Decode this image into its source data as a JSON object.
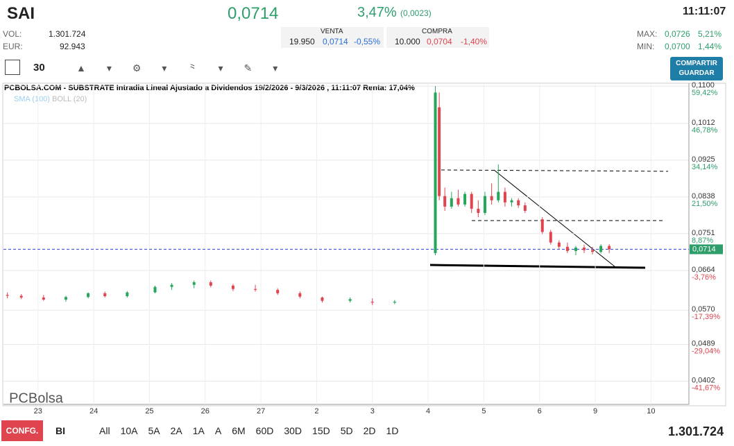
{
  "header": {
    "symbol": "SAI",
    "price": "0,0714",
    "change_pct": "3,47%",
    "change_abs": "(0,0023)",
    "time": "11:11:07",
    "vol_label": "VOL:",
    "vol": "1.301.724",
    "eur_label": "EUR:",
    "eur": "92.943",
    "venta_label": "VENTA",
    "venta_qty": "19.950",
    "venta_price": "0,0714",
    "venta_pct": "-0,55%",
    "compra_label": "COMPRA",
    "compra_qty": "10.000",
    "compra_price": "0,0704",
    "compra_pct": "-1,40%",
    "max_label": "MAX:",
    "max": "0,0726",
    "max_pct": "5,21%",
    "min_label": "MIN:",
    "min": "0,0700",
    "min_pct": "1,44%"
  },
  "toolbar": {
    "interval": "30",
    "share": "COMPARTIR GUARDAR"
  },
  "footer": {
    "config": "CONFG.",
    "mode": "BI",
    "ranges": [
      "All",
      "10A",
      "5A",
      "2A",
      "1A",
      "A",
      "6M",
      "60D",
      "30D",
      "15D",
      "5D",
      "2D",
      "1D"
    ],
    "volume": "1.301.724"
  },
  "chart_data": {
    "type": "candlestick",
    "title": "PCBOLSA.COM - SUBSTRATE Intradia Lineal Ajustado a Dividendos 19/2/2026 - 9/3/2026 , 11:11:07 Renta: 17,04%",
    "indicators": [
      "SMA (100)",
      "BOLL (20)"
    ],
    "logo": "PCBolsa",
    "xlim": [
      -0.62,
      11.68
    ],
    "xticks": [
      {
        "value": 0,
        "label": "23"
      },
      {
        "value": 1,
        "label": "24"
      },
      {
        "value": 2,
        "label": "25"
      },
      {
        "value": 3,
        "label": "26"
      },
      {
        "value": 4,
        "label": "27"
      },
      {
        "value": 5,
        "label": "2"
      },
      {
        "value": 6,
        "label": "3"
      },
      {
        "value": 7,
        "label": "4"
      },
      {
        "value": 8,
        "label": "5"
      },
      {
        "value": 9,
        "label": "6"
      },
      {
        "value": 10,
        "label": "9"
      },
      {
        "value": 11,
        "label": "10"
      }
    ],
    "ylim": [
      0.0347,
      0.1107
    ],
    "yticks": [
      {
        "value": 0.11,
        "label": "0,1100"
      },
      {
        "value": 0.1012,
        "label": "0,1012"
      },
      {
        "value": 0.0925,
        "label": "0,0925"
      },
      {
        "value": 0.0838,
        "label": "0,0838"
      },
      {
        "value": 0.0751,
        "label": "0,0751"
      },
      {
        "value": 0.0664,
        "label": "0,0664"
      },
      {
        "value": 0.057,
        "label": "0,0570"
      },
      {
        "value": 0.0489,
        "label": "0,0489"
      },
      {
        "value": 0.0402,
        "label": "0,0402"
      }
    ],
    "ytick_changes": [
      "59,42%",
      "46,78%",
      "34,14%",
      "21,50%",
      "8,87%",
      "-3,76%",
      "-17,39%",
      "-29,04%",
      "-41,67%"
    ],
    "last_price": {
      "value": 0.0714,
      "label": "0,0714"
    },
    "up_color": "#26a65b",
    "down_color": "#e0454f",
    "candles": [
      [
        -0.55,
        0.0606,
        0.0612,
        0.0598,
        0.0604
      ],
      [
        -0.3,
        0.0604,
        0.0608,
        0.0596,
        0.06
      ],
      [
        0.1,
        0.06,
        0.0606,
        0.0592,
        0.0595
      ],
      [
        0.5,
        0.0595,
        0.0604,
        0.059,
        0.0601
      ],
      [
        0.9,
        0.0601,
        0.0612,
        0.0598,
        0.061
      ],
      [
        1.2,
        0.061,
        0.0614,
        0.06,
        0.0603
      ],
      [
        1.6,
        0.0603,
        0.0615,
        0.06,
        0.0612
      ],
      [
        2.1,
        0.0612,
        0.0628,
        0.061,
        0.0625
      ],
      [
        2.4,
        0.0625,
        0.0634,
        0.0618,
        0.063
      ],
      [
        2.8,
        0.063,
        0.064,
        0.0622,
        0.0636
      ],
      [
        3.1,
        0.0636,
        0.064,
        0.0624,
        0.0628
      ],
      [
        3.5,
        0.0628,
        0.0632,
        0.0615,
        0.062
      ],
      [
        3.9,
        0.062,
        0.063,
        0.0614,
        0.0618
      ],
      [
        4.3,
        0.0618,
        0.0622,
        0.0606,
        0.061
      ],
      [
        4.7,
        0.061,
        0.0614,
        0.0598,
        0.0602
      ],
      [
        5.1,
        0.06,
        0.0602,
        0.0588,
        0.0592
      ],
      [
        5.6,
        0.0592,
        0.06,
        0.0588,
        0.0596
      ],
      [
        6.0,
        0.059,
        0.0598,
        0.0582,
        0.0588
      ],
      [
        6.4,
        0.0588,
        0.0594,
        0.0584,
        0.059
      ],
      [
        7.13,
        0.0705,
        0.11,
        0.07,
        0.1085
      ],
      [
        7.2,
        0.105,
        0.1085,
        0.083,
        0.084
      ],
      [
        7.3,
        0.084,
        0.086,
        0.0805,
        0.0815
      ],
      [
        7.42,
        0.0815,
        0.085,
        0.081,
        0.0835
      ],
      [
        7.54,
        0.0835,
        0.0855,
        0.0815,
        0.082
      ],
      [
        7.66,
        0.082,
        0.085,
        0.0815,
        0.0845
      ],
      [
        7.78,
        0.0845,
        0.085,
        0.08,
        0.081
      ],
      [
        7.9,
        0.081,
        0.083,
        0.079,
        0.08
      ],
      [
        8.02,
        0.08,
        0.085,
        0.0795,
        0.084
      ],
      [
        8.14,
        0.084,
        0.087,
        0.082,
        0.083
      ],
      [
        8.26,
        0.083,
        0.0915,
        0.0825,
        0.085
      ],
      [
        8.38,
        0.085,
        0.086,
        0.0815,
        0.0825
      ],
      [
        8.5,
        0.0825,
        0.0835,
        0.0815,
        0.083
      ],
      [
        8.62,
        0.083,
        0.0835,
        0.0812,
        0.0818
      ],
      [
        8.74,
        0.0818,
        0.0825,
        0.08,
        0.0805
      ],
      [
        9.05,
        0.0785,
        0.079,
        0.075,
        0.0755
      ],
      [
        9.2,
        0.0755,
        0.076,
        0.0725,
        0.073
      ],
      [
        9.35,
        0.073,
        0.0735,
        0.0715,
        0.072
      ],
      [
        9.5,
        0.072,
        0.073,
        0.0705,
        0.071
      ],
      [
        9.65,
        0.071,
        0.0722,
        0.07,
        0.0718
      ],
      [
        9.8,
        0.0718,
        0.0725,
        0.0705,
        0.0712
      ],
      [
        9.95,
        0.0712,
        0.072,
        0.0702,
        0.0708
      ],
      [
        10.1,
        0.0708,
        0.0726,
        0.0704,
        0.0722
      ],
      [
        10.25,
        0.0722,
        0.0726,
        0.0705,
        0.0714
      ]
    ]
  }
}
